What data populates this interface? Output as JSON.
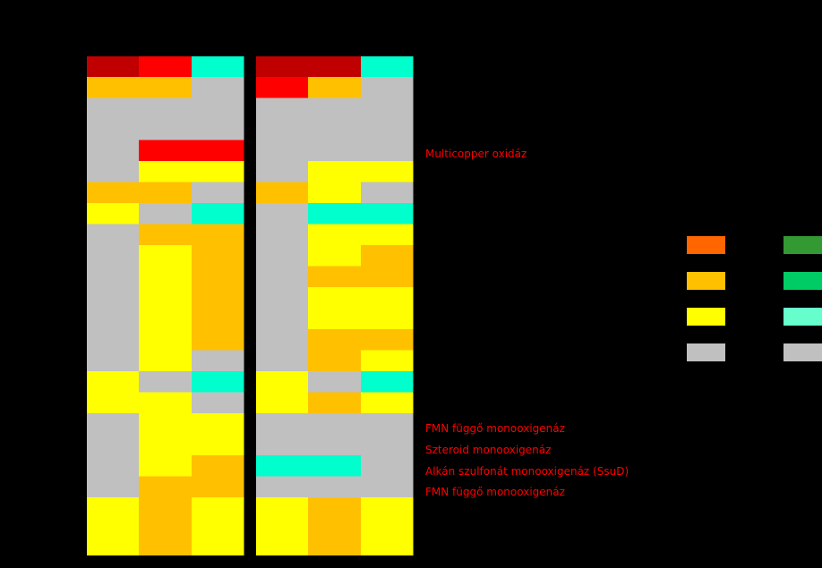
{
  "chart_data": {
    "type": "heatmap",
    "color_map": {
      "dark_red": "#c00000",
      "red": "#ff0000",
      "orange_amber": "#ffc000",
      "yellow": "#ffff00",
      "gray": "#c0c0c0",
      "cyan": "#00ffcc"
    },
    "panels": [
      {
        "columns": 3,
        "rows": [
          [
            "dark_red",
            "red",
            "cyan"
          ],
          [
            "orange_amber",
            "orange_amber",
            "gray"
          ],
          [
            "gray",
            "gray",
            "gray"
          ],
          [
            "gray",
            "gray",
            "gray"
          ],
          [
            "gray",
            "red",
            "red"
          ],
          [
            "gray",
            "yellow",
            "yellow"
          ],
          [
            "orange_amber",
            "orange_amber",
            "gray"
          ],
          [
            "yellow",
            "gray",
            "cyan"
          ],
          [
            "gray",
            "orange_amber",
            "orange_amber"
          ],
          [
            "gray",
            "yellow",
            "orange_amber"
          ],
          [
            "gray",
            "yellow",
            "orange_amber"
          ],
          [
            "gray",
            "yellow",
            "orange_amber"
          ],
          [
            "gray",
            "yellow",
            "orange_amber"
          ],
          [
            "gray",
            "yellow",
            "orange_amber"
          ],
          [
            "gray",
            "yellow",
            "gray"
          ],
          [
            "yellow",
            "gray",
            "cyan"
          ],
          [
            "yellow",
            "yellow",
            "gray"
          ],
          [
            "gray",
            "yellow",
            "yellow"
          ],
          [
            "gray",
            "yellow",
            "yellow"
          ],
          [
            "gray",
            "yellow",
            "orange_amber"
          ],
          [
            "gray",
            "orange_amber",
            "orange_amber"
          ],
          [
            "yellow",
            "orange_amber",
            "yellow"
          ],
          [
            "yellow",
            "orange_amber",
            "yellow"
          ],
          [
            "yellow",
            "orange_amber",
            "yellow"
          ]
        ]
      },
      {
        "columns": 3,
        "rows": [
          [
            "dark_red",
            "dark_red",
            "cyan"
          ],
          [
            "red",
            "orange_amber",
            "gray"
          ],
          [
            "gray",
            "gray",
            "gray"
          ],
          [
            "gray",
            "gray",
            "gray"
          ],
          [
            "gray",
            "gray",
            "gray"
          ],
          [
            "gray",
            "yellow",
            "yellow"
          ],
          [
            "orange_amber",
            "yellow",
            "gray"
          ],
          [
            "gray",
            "cyan",
            "cyan"
          ],
          [
            "gray",
            "yellow",
            "yellow"
          ],
          [
            "gray",
            "yellow",
            "orange_amber"
          ],
          [
            "gray",
            "orange_amber",
            "orange_amber"
          ],
          [
            "gray",
            "yellow",
            "yellow"
          ],
          [
            "gray",
            "yellow",
            "yellow"
          ],
          [
            "gray",
            "orange_amber",
            "orange_amber"
          ],
          [
            "gray",
            "orange_amber",
            "yellow"
          ],
          [
            "yellow",
            "gray",
            "cyan"
          ],
          [
            "yellow",
            "orange_amber",
            "yellow"
          ],
          [
            "gray",
            "gray",
            "gray"
          ],
          [
            "gray",
            "gray",
            "gray"
          ],
          [
            "cyan",
            "cyan",
            "gray"
          ],
          [
            "gray",
            "gray",
            "gray"
          ],
          [
            "yellow",
            "orange_amber",
            "yellow"
          ],
          [
            "yellow",
            "orange_amber",
            "yellow"
          ],
          [
            "yellow",
            "orange_amber",
            "yellow"
          ]
        ]
      }
    ],
    "row_annotations": [
      {
        "row": 4,
        "text": "Multicopper oxidáz"
      },
      {
        "row": 17,
        "text": "FMN függő monooxigenáz"
      },
      {
        "row": 18,
        "text": "Szteroid monooxigenáz"
      },
      {
        "row": 19,
        "text": "Alkán szulfonát monooxigenáz (SsuD)"
      },
      {
        "row": 20,
        "text": "FMN függő monooxigenáz"
      }
    ],
    "legend": {
      "columns": [
        [
          "#ff6600",
          "#ffc000",
          "#ffff00",
          "#c0c0c0"
        ],
        [
          "#339933",
          "#00cc66",
          "#66ffcc",
          "#c0c0c0"
        ]
      ]
    }
  }
}
